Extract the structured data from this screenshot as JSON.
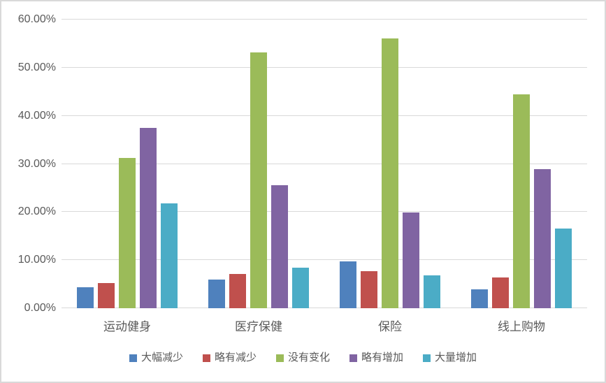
{
  "chart_data": {
    "type": "bar",
    "categories": [
      "运动健身",
      "医疗保健",
      "保险",
      "线上购物"
    ],
    "series": [
      {
        "id": "sharp-decrease",
        "name": "大幅减少",
        "color": "#4F81BD",
        "values": [
          4.4,
          5.9,
          9.7,
          3.9
        ]
      },
      {
        "id": "slight-decrease",
        "name": "略有减少",
        "color": "#C0504D",
        "values": [
          5.3,
          7.1,
          7.7,
          6.4
        ]
      },
      {
        "id": "no-change",
        "name": "没有变化",
        "color": "#9BBB59",
        "values": [
          31.2,
          53.2,
          56.1,
          44.5
        ]
      },
      {
        "id": "slight-increase",
        "name": "略有增加",
        "color": "#8064A2",
        "values": [
          37.5,
          25.5,
          19.9,
          28.9
        ]
      },
      {
        "id": "large-increase",
        "name": "大量增加",
        "color": "#4BACC6",
        "values": [
          21.8,
          8.4,
          6.9,
          16.6
        ]
      }
    ],
    "ylim": [
      0,
      60
    ],
    "ytick_step": 10,
    "ytick_labels": [
      "0.00%",
      "10.00%",
      "20.00%",
      "30.00%",
      "40.00%",
      "50.00%",
      "60.00%"
    ],
    "grid": true,
    "legend_position": "bottom"
  },
  "style": {
    "grid_color": "#D9D9D9",
    "border_color": "#D9D9D9",
    "text_color": "#595959",
    "background": "#FFFFFF"
  }
}
